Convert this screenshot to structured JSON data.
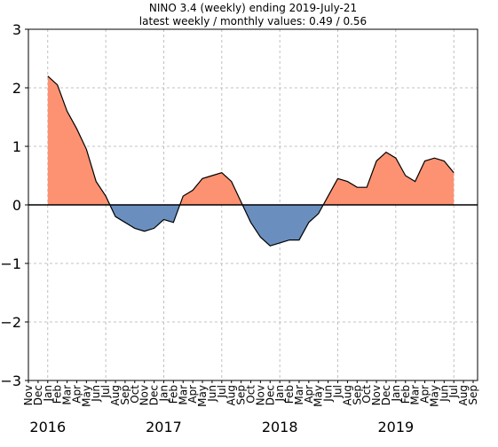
{
  "chart_data": {
    "type": "area",
    "title": "NINO 3.4 (weekly) ending 2019-July-21",
    "subtitle": "latest weekly / monthly values: 0.49 / 0.56",
    "x": [
      "2016-01",
      "2016-02",
      "2016-03",
      "2016-04",
      "2016-05",
      "2016-06",
      "2016-07",
      "2016-08",
      "2016-09",
      "2016-10",
      "2016-11",
      "2016-12",
      "2017-01",
      "2017-02",
      "2017-03",
      "2017-04",
      "2017-05",
      "2017-06",
      "2017-07",
      "2017-08",
      "2017-09",
      "2017-10",
      "2017-11",
      "2017-12",
      "2018-01",
      "2018-02",
      "2018-03",
      "2018-04",
      "2018-05",
      "2018-06",
      "2018-07",
      "2018-08",
      "2018-09",
      "2018-10",
      "2018-11",
      "2018-12",
      "2019-01",
      "2019-02",
      "2019-03",
      "2019-04",
      "2019-05",
      "2019-06",
      "2019-07"
    ],
    "values": [
      2.2,
      2.05,
      1.6,
      1.3,
      0.95,
      0.4,
      0.15,
      -0.2,
      -0.3,
      -0.4,
      -0.45,
      -0.4,
      -0.25,
      -0.3,
      0.15,
      0.25,
      0.45,
      0.5,
      0.55,
      0.4,
      0.05,
      -0.3,
      -0.55,
      -0.7,
      -0.65,
      -0.6,
      -0.6,
      -0.3,
      -0.15,
      0.15,
      0.45,
      0.4,
      0.3,
      0.3,
      0.75,
      0.9,
      0.8,
      0.5,
      0.4,
      0.75,
      0.8,
      0.75,
      0.55
    ],
    "pos_color": "#fc9272",
    "neg_color": "#6a8fbf",
    "line_color": "#000000",
    "xlim": [
      "2015-11",
      "2019-09"
    ],
    "xticks": [
      {
        "value": "2015-11",
        "label": "Nov"
      },
      {
        "value": "2015-12",
        "label": "Dec"
      },
      {
        "value": "2016-01",
        "label": "Jan"
      },
      {
        "value": "2016-02",
        "label": "Feb"
      },
      {
        "value": "2016-03",
        "label": "Mar"
      },
      {
        "value": "2016-04",
        "label": "Apr"
      },
      {
        "value": "2016-05",
        "label": "May"
      },
      {
        "value": "2016-06",
        "label": "Jun"
      },
      {
        "value": "2016-07",
        "label": "Jul"
      },
      {
        "value": "2016-08",
        "label": "Aug"
      },
      {
        "value": "2016-09",
        "label": "Sep"
      },
      {
        "value": "2016-10",
        "label": "Oct"
      },
      {
        "value": "2016-11",
        "label": "Nov"
      },
      {
        "value": "2016-12",
        "label": "Dec"
      },
      {
        "value": "2017-01",
        "label": "Jan"
      },
      {
        "value": "2017-02",
        "label": "Feb"
      },
      {
        "value": "2017-03",
        "label": "Mar"
      },
      {
        "value": "2017-04",
        "label": "Apr"
      },
      {
        "value": "2017-05",
        "label": "May"
      },
      {
        "value": "2017-06",
        "label": "Jun"
      },
      {
        "value": "2017-07",
        "label": "Jul"
      },
      {
        "value": "2017-08",
        "label": "Aug"
      },
      {
        "value": "2017-09",
        "label": "Sep"
      },
      {
        "value": "2017-10",
        "label": "Oct"
      },
      {
        "value": "2017-11",
        "label": "Nov"
      },
      {
        "value": "2017-12",
        "label": "Dec"
      },
      {
        "value": "2018-01",
        "label": "Jan"
      },
      {
        "value": "2018-02",
        "label": "Feb"
      },
      {
        "value": "2018-03",
        "label": "Mar"
      },
      {
        "value": "2018-04",
        "label": "Apr"
      },
      {
        "value": "2018-05",
        "label": "May"
      },
      {
        "value": "2018-06",
        "label": "Jun"
      },
      {
        "value": "2018-07",
        "label": "Jul"
      },
      {
        "value": "2018-08",
        "label": "Aug"
      },
      {
        "value": "2018-09",
        "label": "Sep"
      },
      {
        "value": "2018-10",
        "label": "Oct"
      },
      {
        "value": "2018-11",
        "label": "Nov"
      },
      {
        "value": "2018-12",
        "label": "Dec"
      },
      {
        "value": "2019-01",
        "label": "Jan"
      },
      {
        "value": "2019-02",
        "label": "Feb"
      },
      {
        "value": "2019-03",
        "label": "Mar"
      },
      {
        "value": "2019-04",
        "label": "Apr"
      },
      {
        "value": "2019-05",
        "label": "May"
      },
      {
        "value": "2019-06",
        "label": "Jun"
      },
      {
        "value": "2019-07",
        "label": "Jul"
      },
      {
        "value": "2019-08",
        "label": "Aug"
      },
      {
        "value": "2019-09",
        "label": "Sep"
      }
    ],
    "year_labels": [
      {
        "value": "2016-01",
        "label": "2016"
      },
      {
        "value": "2017-01",
        "label": "2017"
      },
      {
        "value": "2018-01",
        "label": "2018"
      },
      {
        "value": "2019-01",
        "label": "2019"
      }
    ],
    "ylim": [
      -3,
      3
    ],
    "yticks": [
      {
        "value": -3,
        "label": "−3"
      },
      {
        "value": -2,
        "label": "−2"
      },
      {
        "value": -1,
        "label": "−1"
      },
      0,
      1,
      2,
      3
    ],
    "grid": true
  }
}
